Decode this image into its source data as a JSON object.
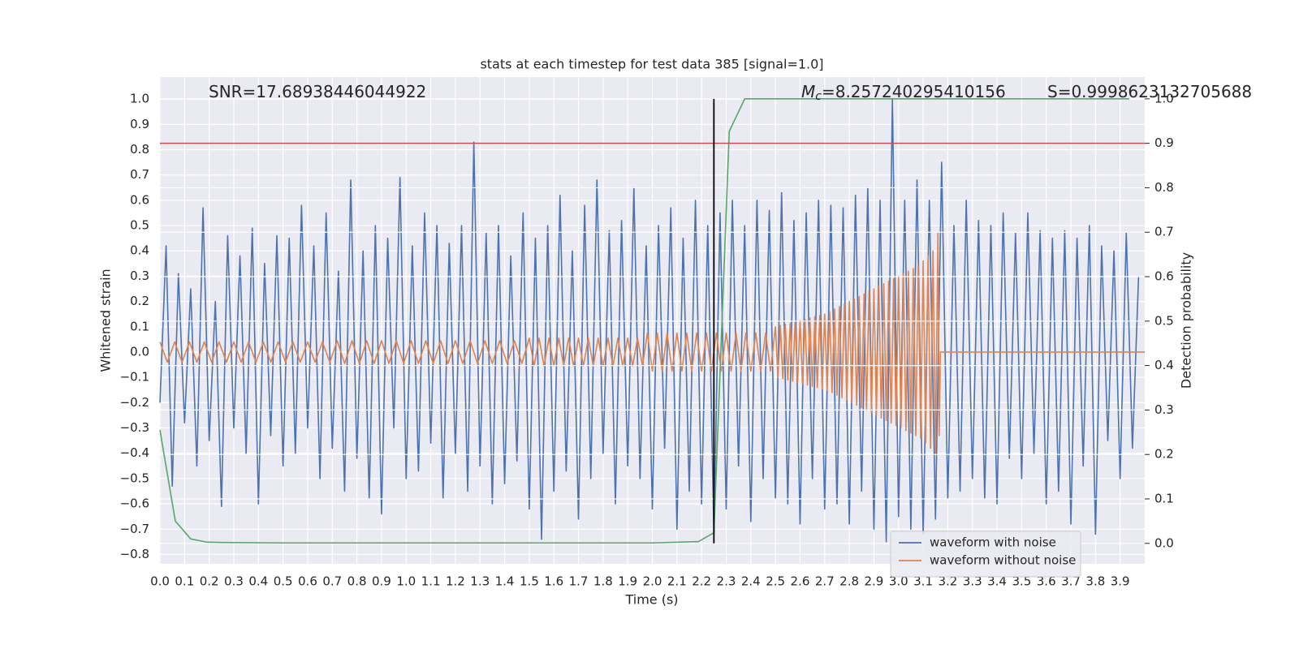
{
  "chart_data": {
    "type": "line",
    "title": "stats at each timestep for test data 385 [signal=1.0]",
    "xlabel": "Time (s)",
    "ylabel": "Whitened strain",
    "y2label": "Detection probability",
    "annotations": [
      {
        "text": "SNR=17.68938446044922"
      },
      {
        "symbol": "M",
        "subscript": "c",
        "text": "=8.257240295410156"
      },
      {
        "text": "S=0.9998623132705688"
      }
    ],
    "xlim": [
      0,
      4.0
    ],
    "ylim": [
      -0.837,
      1.087
    ],
    "y2lim": [
      -0.046,
      1.049
    ],
    "xticks": [
      {
        "value": 0,
        "label": "0.0"
      },
      0.1,
      0.2,
      0.3,
      0.4,
      0.5,
      0.6,
      0.7,
      0.8,
      0.9,
      {
        "value": 1,
        "label": "1.0"
      },
      1.1,
      1.2,
      1.3,
      1.4,
      1.5,
      1.6,
      1.7,
      1.8,
      1.9,
      {
        "value": 2,
        "label": "2.0"
      },
      2.1,
      2.2,
      2.3,
      2.4,
      2.5,
      2.6,
      2.7,
      2.8,
      2.9,
      {
        "value": 3,
        "label": "3.0"
      },
      3.1,
      3.2,
      3.3,
      3.4,
      3.5,
      3.6,
      3.7,
      3.8,
      3.9
    ],
    "yticks": [
      {
        "value": -0.8,
        "label": "−0.8"
      },
      {
        "value": -0.7,
        "label": "−0.7"
      },
      {
        "value": -0.6,
        "label": "−0.6"
      },
      {
        "value": -0.5,
        "label": "−0.5"
      },
      {
        "value": -0.4,
        "label": "−0.4"
      },
      {
        "value": -0.3,
        "label": "−0.3"
      },
      {
        "value": -0.2,
        "label": "−0.2"
      },
      {
        "value": -0.1,
        "label": "−0.1"
      },
      {
        "value": 0,
        "label": "0.0"
      },
      0.1,
      0.2,
      0.3,
      0.4,
      0.5,
      0.6,
      0.7,
      0.8,
      0.9,
      {
        "value": 1,
        "label": "1.0"
      }
    ],
    "y2ticks": [
      {
        "value": 0,
        "label": "0.0"
      },
      0.1,
      0.2,
      0.3,
      0.4,
      0.5,
      0.6,
      0.7,
      0.8,
      0.9,
      {
        "value": 1,
        "label": "1.0"
      }
    ],
    "grid": true,
    "legend": "lower right",
    "hline": {
      "y": 0.9,
      "axis": "y2",
      "color": "#c44e52"
    },
    "vline": {
      "x": 2.25,
      "ymin": 0,
      "ymax": 1,
      "axis": "y2",
      "color": "#000000"
    },
    "series": [
      {
        "name": "waveform with noise",
        "color": "#4c72b0",
        "x": [
          0,
          0.025,
          0.05,
          0.075,
          0.1,
          0.125,
          0.15,
          0.175,
          0.2,
          0.225,
          0.25,
          0.275,
          0.3,
          0.325,
          0.35,
          0.375,
          0.4,
          0.425,
          0.45,
          0.475,
          0.5,
          0.525,
          0.55,
          0.575,
          0.6,
          0.625,
          0.65,
          0.675,
          0.7,
          0.725,
          0.75,
          0.775,
          0.8,
          0.825,
          0.85,
          0.875,
          0.9,
          0.925,
          0.95,
          0.975,
          1,
          1.025,
          1.05,
          1.075,
          1.1,
          1.125,
          1.15,
          1.175,
          1.2,
          1.225,
          1.25,
          1.275,
          1.3,
          1.325,
          1.35,
          1.375,
          1.4,
          1.425,
          1.45,
          1.475,
          1.5,
          1.525,
          1.55,
          1.575,
          1.6,
          1.625,
          1.65,
          1.675,
          1.7,
          1.725,
          1.75,
          1.775,
          1.8,
          1.825,
          1.85,
          1.875,
          1.9,
          1.925,
          1.95,
          1.975,
          2,
          2.025,
          2.05,
          2.075,
          2.1,
          2.125,
          2.15,
          2.175,
          2.2,
          2.225,
          2.25,
          2.275,
          2.3,
          2.325,
          2.35,
          2.375,
          2.4,
          2.425,
          2.45,
          2.475,
          2.5,
          2.525,
          2.55,
          2.575,
          2.6,
          2.625,
          2.65,
          2.675,
          2.7,
          2.725,
          2.75,
          2.775,
          2.8,
          2.825,
          2.85,
          2.875,
          2.9,
          2.925,
          2.95,
          2.975,
          3,
          3.025,
          3.05,
          3.075,
          3.1,
          3.125,
          3.15,
          3.175,
          3.2,
          3.225,
          3.25,
          3.275,
          3.3,
          3.325,
          3.35,
          3.375,
          3.4,
          3.425,
          3.45,
          3.475,
          3.5,
          3.525,
          3.55,
          3.575,
          3.6,
          3.625,
          3.65,
          3.675,
          3.7,
          3.725,
          3.75,
          3.775,
          3.8,
          3.825,
          3.85,
          3.875,
          3.9,
          3.925,
          3.95,
          3.975
        ],
        "values": [
          -0.2,
          0.42,
          -0.53,
          0.31,
          -0.28,
          0.25,
          -0.45,
          0.57,
          -0.35,
          0.2,
          -0.61,
          0.46,
          -0.3,
          0.38,
          -0.4,
          0.49,
          -0.6,
          0.35,
          -0.33,
          0.46,
          -0.45,
          0.45,
          -0.4,
          0.58,
          -0.3,
          0.42,
          -0.5,
          0.55,
          -0.38,
          0.32,
          -0.55,
          0.68,
          -0.42,
          0.4,
          -0.58,
          0.5,
          -0.64,
          0.45,
          -0.3,
          0.69,
          -0.5,
          0.42,
          -0.47,
          0.55,
          -0.36,
          0.5,
          -0.58,
          0.43,
          -0.4,
          0.5,
          -0.55,
          0.83,
          -0.45,
          0.47,
          -0.6,
          0.5,
          -0.52,
          0.38,
          -0.43,
          0.55,
          -0.62,
          0.45,
          -0.74,
          0.5,
          -0.55,
          0.62,
          -0.47,
          0.4,
          -0.66,
          0.58,
          -0.5,
          0.68,
          -0.4,
          0.48,
          -0.6,
          0.52,
          -0.45,
          0.65,
          -0.5,
          0.42,
          -0.62,
          0.5,
          -0.38,
          0.57,
          -0.7,
          0.45,
          -0.55,
          0.6,
          -0.6,
          0.5,
          -0.72,
          0.55,
          -0.62,
          0.6,
          -0.45,
          0.5,
          -0.67,
          0.6,
          -0.5,
          0.56,
          -0.58,
          0.63,
          -0.6,
          0.52,
          -0.68,
          0.55,
          -0.5,
          0.6,
          -0.62,
          0.58,
          -0.6,
          0.57,
          -0.68,
          0.62,
          -0.55,
          0.65,
          -0.7,
          0.6,
          -0.75,
          1.0,
          -0.65,
          0.6,
          -0.7,
          0.68,
          -0.72,
          0.6,
          -0.66,
          0.75,
          -0.58,
          0.5,
          -0.55,
          0.6,
          -0.5,
          0.52,
          -0.58,
          0.5,
          -0.6,
          0.55,
          -0.42,
          0.47,
          -0.5,
          0.55,
          -0.4,
          0.48,
          -0.6,
          0.45,
          -0.55,
          0.48,
          -0.68,
          0.45,
          -0.45,
          0.5,
          -0.72,
          0.42,
          -0.35,
          0.4,
          -0.5,
          0.47,
          -0.38,
          0.3
        ]
      },
      {
        "name": "waveform without noise",
        "color": "#dd8452",
        "x": [
          0,
          0.03,
          0.06,
          0.09,
          0.12,
          0.15,
          0.18,
          0.21,
          0.24,
          0.27,
          0.3,
          0.33,
          0.36,
          0.39,
          0.42,
          0.45,
          0.48,
          0.51,
          0.54,
          0.57,
          0.6,
          0.63,
          0.66,
          0.69,
          0.72,
          0.75,
          0.78,
          0.81,
          0.84,
          0.87,
          0.9,
          0.93,
          0.96,
          0.99,
          1.02,
          1.05,
          1.08,
          1.11,
          1.14,
          1.17,
          1.2,
          1.23,
          1.26,
          1.29,
          1.32,
          1.35,
          1.38,
          1.41,
          1.44,
          1.47,
          1.5,
          1.52,
          1.54,
          1.56,
          1.58,
          1.6,
          1.62,
          1.64,
          1.66,
          1.68,
          1.7,
          1.72,
          1.74,
          1.76,
          1.78,
          1.8,
          1.82,
          1.84,
          1.86,
          1.88,
          1.9,
          1.92,
          1.94,
          1.96,
          1.98,
          2,
          2.02,
          2.04,
          2.06,
          2.08,
          2.1,
          2.12,
          2.14,
          2.16,
          2.18,
          2.2,
          2.22,
          2.24,
          2.26,
          2.28,
          2.3,
          2.32,
          2.34,
          2.36,
          2.38,
          2.4,
          2.42,
          2.44,
          2.46,
          2.48,
          2.5,
          2.51,
          2.52,
          2.53,
          2.54,
          2.55,
          2.56,
          2.57,
          2.58,
          2.59,
          2.6,
          2.61,
          2.62,
          2.63,
          2.64,
          2.65,
          2.66,
          2.67,
          2.68,
          2.69,
          2.7,
          2.71,
          2.72,
          2.73,
          2.74,
          2.75,
          2.76,
          2.77,
          2.78,
          2.79,
          2.8,
          2.81,
          2.82,
          2.83,
          2.84,
          2.85,
          2.86,
          2.87,
          2.88,
          2.89,
          2.9,
          2.91,
          2.92,
          2.93,
          2.94,
          2.95,
          2.96,
          2.97,
          2.98,
          2.99,
          3,
          3.01,
          3.02,
          3.03,
          3.04,
          3.05,
          3.06,
          3.07,
          3.08,
          3.09,
          3.1,
          3.11,
          3.12,
          3.13,
          3.14,
          3.15,
          3.16,
          3.165,
          3.17,
          4.0
        ],
        "values": [
          0.04,
          -0.04,
          0.04,
          -0.04,
          0.04,
          -0.04,
          0.04,
          -0.04,
          0.04,
          -0.04,
          0.04,
          -0.04,
          0.04,
          -0.04,
          0.04,
          -0.04,
          0.04,
          -0.04,
          0.04,
          -0.04,
          0.04,
          -0.04,
          0.04,
          -0.04,
          0.045,
          -0.045,
          0.045,
          -0.045,
          0.045,
          -0.045,
          0.045,
          -0.045,
          0.045,
          -0.045,
          0.045,
          -0.045,
          0.045,
          -0.045,
          0.045,
          -0.045,
          0.045,
          -0.045,
          0.045,
          -0.045,
          0.045,
          -0.045,
          0.045,
          -0.045,
          0.045,
          -0.045,
          0.055,
          -0.055,
          0.055,
          -0.055,
          0.055,
          -0.055,
          0.055,
          -0.055,
          0.055,
          -0.055,
          0.055,
          -0.055,
          0.055,
          -0.055,
          0.055,
          -0.055,
          0.055,
          -0.055,
          0.055,
          -0.055,
          0.055,
          -0.055,
          0.055,
          -0.055,
          0.075,
          -0.075,
          0.075,
          -0.075,
          0.075,
          -0.075,
          0.075,
          -0.075,
          0.075,
          -0.075,
          0.075,
          -0.075,
          0.075,
          -0.075,
          0.075,
          -0.075,
          0.075,
          -0.075,
          0.075,
          -0.075,
          0.075,
          -0.075,
          0.075,
          -0.075,
          0.075,
          -0.075,
          0.1,
          -0.1,
          0.105,
          -0.105,
          0.11,
          -0.11,
          0.115,
          -0.115,
          0.12,
          -0.12,
          0.125,
          -0.125,
          0.13,
          -0.13,
          0.135,
          -0.135,
          0.14,
          -0.14,
          0.145,
          -0.145,
          0.15,
          -0.15,
          0.16,
          -0.16,
          0.17,
          -0.17,
          0.18,
          -0.18,
          0.19,
          -0.19,
          0.2,
          -0.2,
          0.21,
          -0.21,
          0.22,
          -0.22,
          0.23,
          -0.23,
          0.24,
          -0.24,
          0.25,
          -0.25,
          0.26,
          -0.26,
          0.27,
          -0.27,
          0.28,
          -0.28,
          0.29,
          -0.29,
          0.3,
          -0.3,
          0.31,
          -0.31,
          0.32,
          -0.32,
          0.33,
          -0.33,
          0.34,
          -0.34,
          0.36,
          -0.36,
          0.38,
          -0.38,
          0.4,
          -0.4,
          0.47,
          -0.33,
          0,
          0
        ]
      },
      {
        "color": "#55a868",
        "axis": "y2",
        "x": [
          0,
          0.0625,
          0.125,
          0.1875,
          0.25,
          0.5,
          1.0,
          1.5,
          2.0,
          2.1875,
          2.25,
          2.3125,
          2.375,
          3.0,
          3.9375
        ],
        "values": [
          0.255,
          0.05,
          0.01,
          0.003,
          0.002,
          0.001,
          0.001,
          0.001,
          0.001,
          0.004,
          0.024,
          0.927,
          1.0,
          1.0,
          1.0
        ]
      }
    ]
  }
}
